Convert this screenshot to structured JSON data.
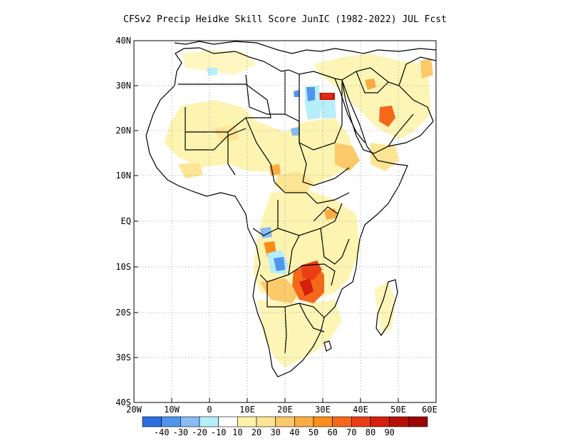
{
  "title": "CFSv2 Precip Heidke Skill Score JunIC (1982-2022) JUL Fcst",
  "axes": {
    "lat_labels": [
      "40N",
      "30N",
      "20N",
      "10N",
      "EQ",
      "10S",
      "20S",
      "30S",
      "40S"
    ],
    "lon_labels": [
      "20W",
      "10W",
      "0",
      "10E",
      "20E",
      "30E",
      "40E",
      "50E",
      "60E"
    ],
    "lat_range": [
      -40,
      40
    ],
    "lon_range": [
      -20,
      60
    ],
    "grid": "dotted"
  },
  "colorbar": {
    "colors": [
      "#2b6fe0",
      "#4f95f0",
      "#86bdf5",
      "#b6eefa",
      "#ffffff",
      "#fdf3a8",
      "#fde594",
      "#fcc96b",
      "#fbac41",
      "#f98e1a",
      "#f5681a",
      "#ea3d16",
      "#d4200c",
      "#b60f06",
      "#9c0503"
    ],
    "labels": [
      "-40",
      "-30",
      "-20",
      "-10",
      "10",
      "20",
      "30",
      "40",
      "50",
      "60",
      "70",
      "80",
      "90"
    ]
  },
  "features": {
    "land_color": "#ffffff",
    "boundary_color": "#000000"
  }
}
